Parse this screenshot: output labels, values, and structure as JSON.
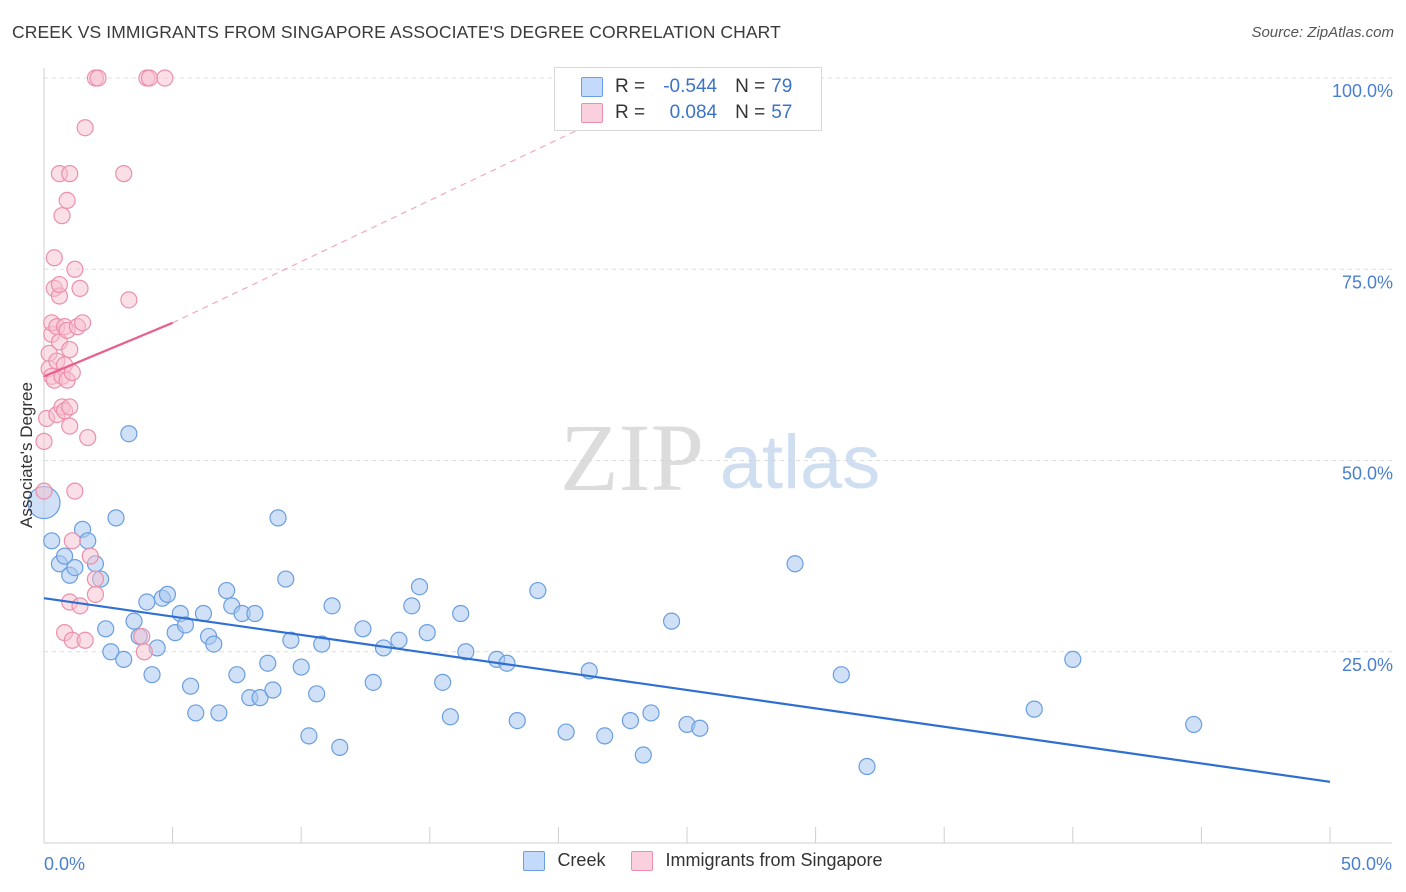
{
  "title": "CREEK VS IMMIGRANTS FROM SINGAPORE ASSOCIATE'S DEGREE CORRELATION CHART",
  "source": "Source: ZipAtlas.com",
  "watermark": {
    "zip": "ZIP",
    "atlas": "atlas"
  },
  "legend": {
    "r_label": "R =",
    "n_label": "N =",
    "series1": {
      "name": "Creek",
      "r": "-0.544",
      "n": "79"
    },
    "series2": {
      "name": "Immigrants from Singapore",
      "r": "0.084",
      "n": "57"
    }
  },
  "colors": {
    "creek_fill": "#a9c8f0",
    "creek_stroke": "#6a9ee0",
    "creek_line": "#2f6fd0",
    "sing_fill": "#f7bfd0",
    "sing_stroke": "#ec8fab",
    "sing_line": "#e8608b",
    "grid": "#dddddd",
    "axis_label": "#4a7fd0"
  },
  "chart_data": {
    "type": "scatter",
    "xlabel": "",
    "ylabel": "Associate's Degree",
    "xlim": [
      0,
      50
    ],
    "ylim": [
      0,
      100
    ],
    "x_tick_labels": {
      "min": "0.0%",
      "max": "50.0%"
    },
    "y_tick_labels": [
      "100.0%",
      "75.0%",
      "50.0%",
      "25.0%"
    ],
    "y_ticks": [
      100,
      75,
      50,
      25
    ],
    "series": [
      {
        "name": "Creek",
        "trend": {
          "x0": 0,
          "y0": 32,
          "x1": 50,
          "y1": 8
        },
        "points": [
          [
            0.0,
            44.5
          ],
          [
            0.3,
            39.5
          ],
          [
            0.6,
            36.5
          ],
          [
            0.8,
            37.5
          ],
          [
            1.0,
            35.0
          ],
          [
            1.2,
            36.0
          ],
          [
            1.5,
            41.0
          ],
          [
            1.7,
            39.5
          ],
          [
            2.0,
            36.5
          ],
          [
            2.2,
            34.5
          ],
          [
            2.4,
            28.0
          ],
          [
            2.6,
            25.0
          ],
          [
            2.8,
            42.5
          ],
          [
            3.1,
            24.0
          ],
          [
            3.3,
            53.5
          ],
          [
            3.5,
            29.0
          ],
          [
            3.7,
            27.0
          ],
          [
            4.0,
            31.5
          ],
          [
            4.2,
            22.0
          ],
          [
            4.4,
            25.5
          ],
          [
            4.6,
            32.0
          ],
          [
            4.8,
            32.5
          ],
          [
            5.1,
            27.5
          ],
          [
            5.3,
            30.0
          ],
          [
            5.5,
            28.5
          ],
          [
            5.7,
            20.5
          ],
          [
            5.9,
            17.0
          ],
          [
            6.2,
            30.0
          ],
          [
            6.4,
            27.0
          ],
          [
            6.6,
            26.0
          ],
          [
            6.8,
            17.0
          ],
          [
            7.1,
            33.0
          ],
          [
            7.3,
            31.0
          ],
          [
            7.5,
            22.0
          ],
          [
            7.7,
            30.0
          ],
          [
            8.0,
            19.0
          ],
          [
            8.2,
            30.0
          ],
          [
            8.4,
            19.0
          ],
          [
            8.7,
            23.5
          ],
          [
            8.9,
            20.0
          ],
          [
            9.1,
            42.5
          ],
          [
            9.4,
            34.5
          ],
          [
            9.6,
            26.5
          ],
          [
            10.0,
            23.0
          ],
          [
            10.3,
            14.0
          ],
          [
            10.6,
            19.5
          ],
          [
            10.8,
            26.0
          ],
          [
            11.2,
            31.0
          ],
          [
            11.5,
            12.5
          ],
          [
            12.4,
            28.0
          ],
          [
            12.8,
            21.0
          ],
          [
            13.2,
            25.5
          ],
          [
            13.8,
            26.5
          ],
          [
            14.3,
            31.0
          ],
          [
            14.6,
            33.5
          ],
          [
            14.9,
            27.5
          ],
          [
            15.5,
            21.0
          ],
          [
            15.8,
            16.5
          ],
          [
            16.2,
            30.0
          ],
          [
            16.4,
            25.0
          ],
          [
            17.6,
            24.0
          ],
          [
            18.0,
            23.5
          ],
          [
            18.4,
            16.0
          ],
          [
            19.2,
            33.0
          ],
          [
            20.3,
            14.5
          ],
          [
            21.2,
            22.5
          ],
          [
            21.8,
            14.0
          ],
          [
            22.8,
            16.0
          ],
          [
            23.3,
            11.5
          ],
          [
            23.6,
            17.0
          ],
          [
            24.4,
            29.0
          ],
          [
            25.0,
            15.5
          ],
          [
            25.5,
            15.0
          ],
          [
            29.2,
            36.5
          ],
          [
            31.0,
            22.0
          ],
          [
            32.0,
            10.0
          ],
          [
            38.5,
            17.5
          ],
          [
            40.0,
            24.0
          ],
          [
            44.7,
            15.5
          ]
        ]
      },
      {
        "name": "Immigrants from Singapore",
        "trend": {
          "x0": 0,
          "y0": 61,
          "x1": 5,
          "y1": 68,
          "dash_to": {
            "x": 25,
            "y": 100
          }
        },
        "points": [
          [
            0.0,
            52.5
          ],
          [
            0.0,
            46.0
          ],
          [
            0.1,
            55.5
          ],
          [
            0.2,
            64.0
          ],
          [
            0.2,
            62.0
          ],
          [
            0.3,
            66.5
          ],
          [
            0.3,
            68.0
          ],
          [
            0.3,
            61.0
          ],
          [
            0.4,
            72.5
          ],
          [
            0.4,
            76.5
          ],
          [
            0.4,
            60.5
          ],
          [
            0.5,
            67.5
          ],
          [
            0.5,
            56.0
          ],
          [
            0.5,
            63.0
          ],
          [
            0.6,
            65.5
          ],
          [
            0.6,
            71.5
          ],
          [
            0.6,
            73.0
          ],
          [
            0.6,
            87.5
          ],
          [
            0.7,
            82.0
          ],
          [
            0.7,
            57.0
          ],
          [
            0.7,
            61.0
          ],
          [
            0.8,
            67.5
          ],
          [
            0.8,
            62.5
          ],
          [
            0.8,
            27.5
          ],
          [
            0.8,
            56.5
          ],
          [
            0.9,
            84.0
          ],
          [
            0.9,
            67.0
          ],
          [
            0.9,
            60.5
          ],
          [
            1.0,
            87.5
          ],
          [
            1.0,
            57.0
          ],
          [
            1.0,
            54.5
          ],
          [
            1.0,
            64.5
          ],
          [
            1.0,
            31.5
          ],
          [
            1.1,
            26.5
          ],
          [
            1.1,
            61.5
          ],
          [
            1.1,
            39.5
          ],
          [
            1.2,
            75.0
          ],
          [
            1.2,
            46.0
          ],
          [
            1.3,
            67.5
          ],
          [
            1.4,
            31.0
          ],
          [
            1.4,
            72.5
          ],
          [
            1.5,
            68.0
          ],
          [
            1.6,
            26.5
          ],
          [
            1.6,
            93.5
          ],
          [
            1.7,
            53.0
          ],
          [
            1.8,
            37.5
          ],
          [
            2.0,
            32.5
          ],
          [
            2.0,
            34.5
          ],
          [
            2.0,
            100.0
          ],
          [
            2.1,
            100.0
          ],
          [
            3.1,
            87.5
          ],
          [
            3.3,
            71.0
          ],
          [
            3.8,
            27.0
          ],
          [
            3.9,
            25.0
          ],
          [
            4.0,
            100.0
          ],
          [
            4.1,
            100.0
          ],
          [
            4.7,
            100.0
          ]
        ]
      }
    ]
  }
}
